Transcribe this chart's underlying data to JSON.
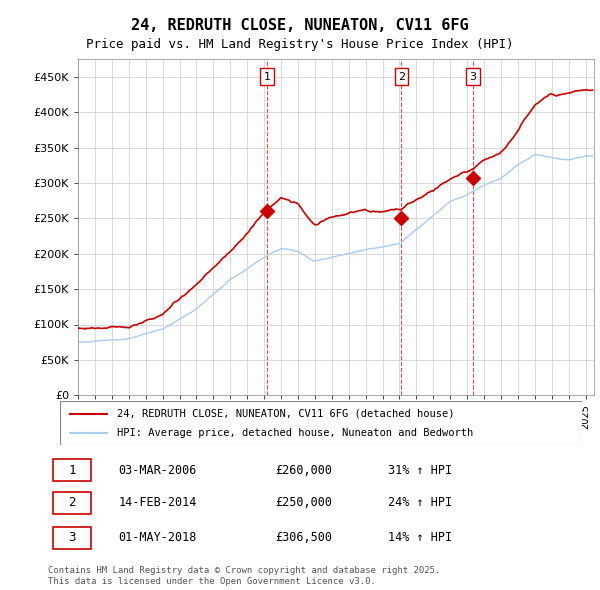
{
  "title_line1": "24, REDRUTH CLOSE, NUNEATON, CV11 6FG",
  "title_line2": "Price paid vs. HM Land Registry's House Price Index (HPI)",
  "ylabel_ticks": [
    "£0",
    "£50K",
    "£100K",
    "£150K",
    "£200K",
    "£250K",
    "£300K",
    "£350K",
    "£400K",
    "£450K"
  ],
  "ytick_values": [
    0,
    50000,
    100000,
    150000,
    200000,
    250000,
    300000,
    350000,
    400000,
    450000
  ],
  "xlim_start": 1995.0,
  "xlim_end": 2025.5,
  "ylim": [
    0,
    475000
  ],
  "legend_label_red": "24, REDRUTH CLOSE, NUNEATON, CV11 6FG (detached house)",
  "legend_label_blue": "HPI: Average price, detached house, Nuneaton and Bedworth",
  "sale1_date": 2006.17,
  "sale1_price": 260000,
  "sale1_label": "1",
  "sale2_date": 2014.12,
  "sale2_price": 250000,
  "sale2_label": "2",
  "sale3_date": 2018.33,
  "sale3_price": 306500,
  "sale3_label": "3",
  "footnote": "Contains HM Land Registry data © Crown copyright and database right 2025.\nThis data is licensed under the Open Government Licence v3.0.",
  "table_rows": [
    {
      "num": "1",
      "date": "03-MAR-2006",
      "price": "£260,000",
      "change": "31% ↑ HPI"
    },
    {
      "num": "2",
      "date": "14-FEB-2014",
      "price": "£250,000",
      "change": "24% ↑ HPI"
    },
    {
      "num": "3",
      "date": "01-MAY-2018",
      "price": "£306,500",
      "change": "14% ↑ HPI"
    }
  ],
  "line_color_red": "#cc0000",
  "line_color_blue": "#aaccee",
  "bg_color": "#ffffff",
  "grid_color": "#cccccc"
}
